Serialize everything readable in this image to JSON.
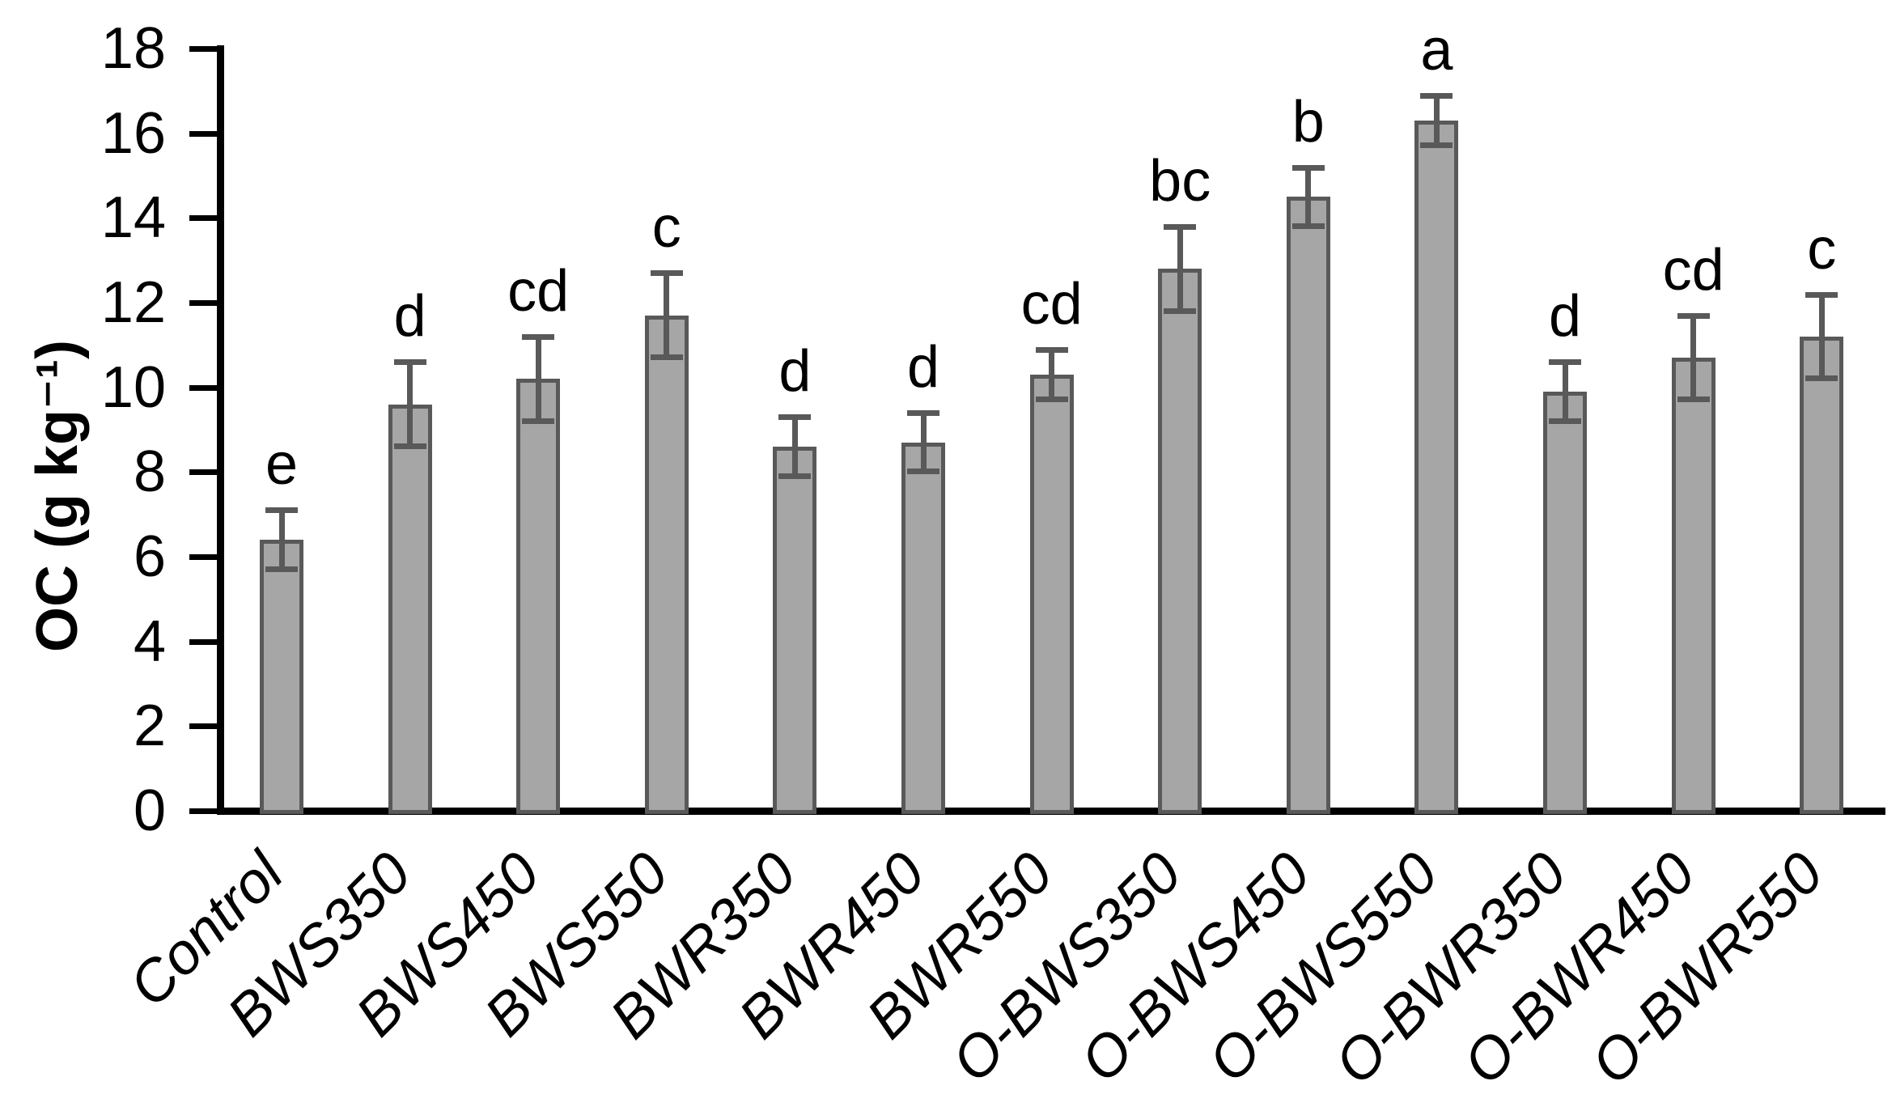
{
  "style": {
    "background": "#ffffff",
    "bar_fill": "#a6a6a6",
    "bar_stroke": "#595959",
    "error_color": "#595959",
    "axis_color": "#000000",
    "text_color": "#000000"
  },
  "chart_data": {
    "type": "bar",
    "title": "",
    "xlabel": "",
    "ylabel": "OC (g kg⁻¹)",
    "ylim": [
      0,
      18
    ],
    "yticks": [
      0,
      2,
      4,
      6,
      8,
      10,
      12,
      14,
      16,
      18
    ],
    "grid": false,
    "legend_position": "none",
    "categories": [
      "Control",
      "BWS350",
      "BWS450",
      "BWS550",
      "BWR350",
      "BWR450",
      "BWR550",
      "O-BWS350",
      "O-BWS450",
      "O-BWS550",
      "O-BWR350",
      "O-BWR450",
      "O-BWR550"
    ],
    "values": [
      6.4,
      9.6,
      10.2,
      11.7,
      8.6,
      8.7,
      10.3,
      12.8,
      14.5,
      16.3,
      9.9,
      10.7,
      11.2
    ],
    "errors": [
      0.7,
      1.0,
      1.0,
      1.0,
      0.7,
      0.7,
      0.6,
      1.0,
      0.7,
      0.6,
      0.7,
      1.0,
      1.0
    ],
    "sig_letters": [
      "e",
      "d",
      "cd",
      "c",
      "d",
      "d",
      "cd",
      "bc",
      "b",
      "a",
      "d",
      "cd",
      "c"
    ]
  }
}
